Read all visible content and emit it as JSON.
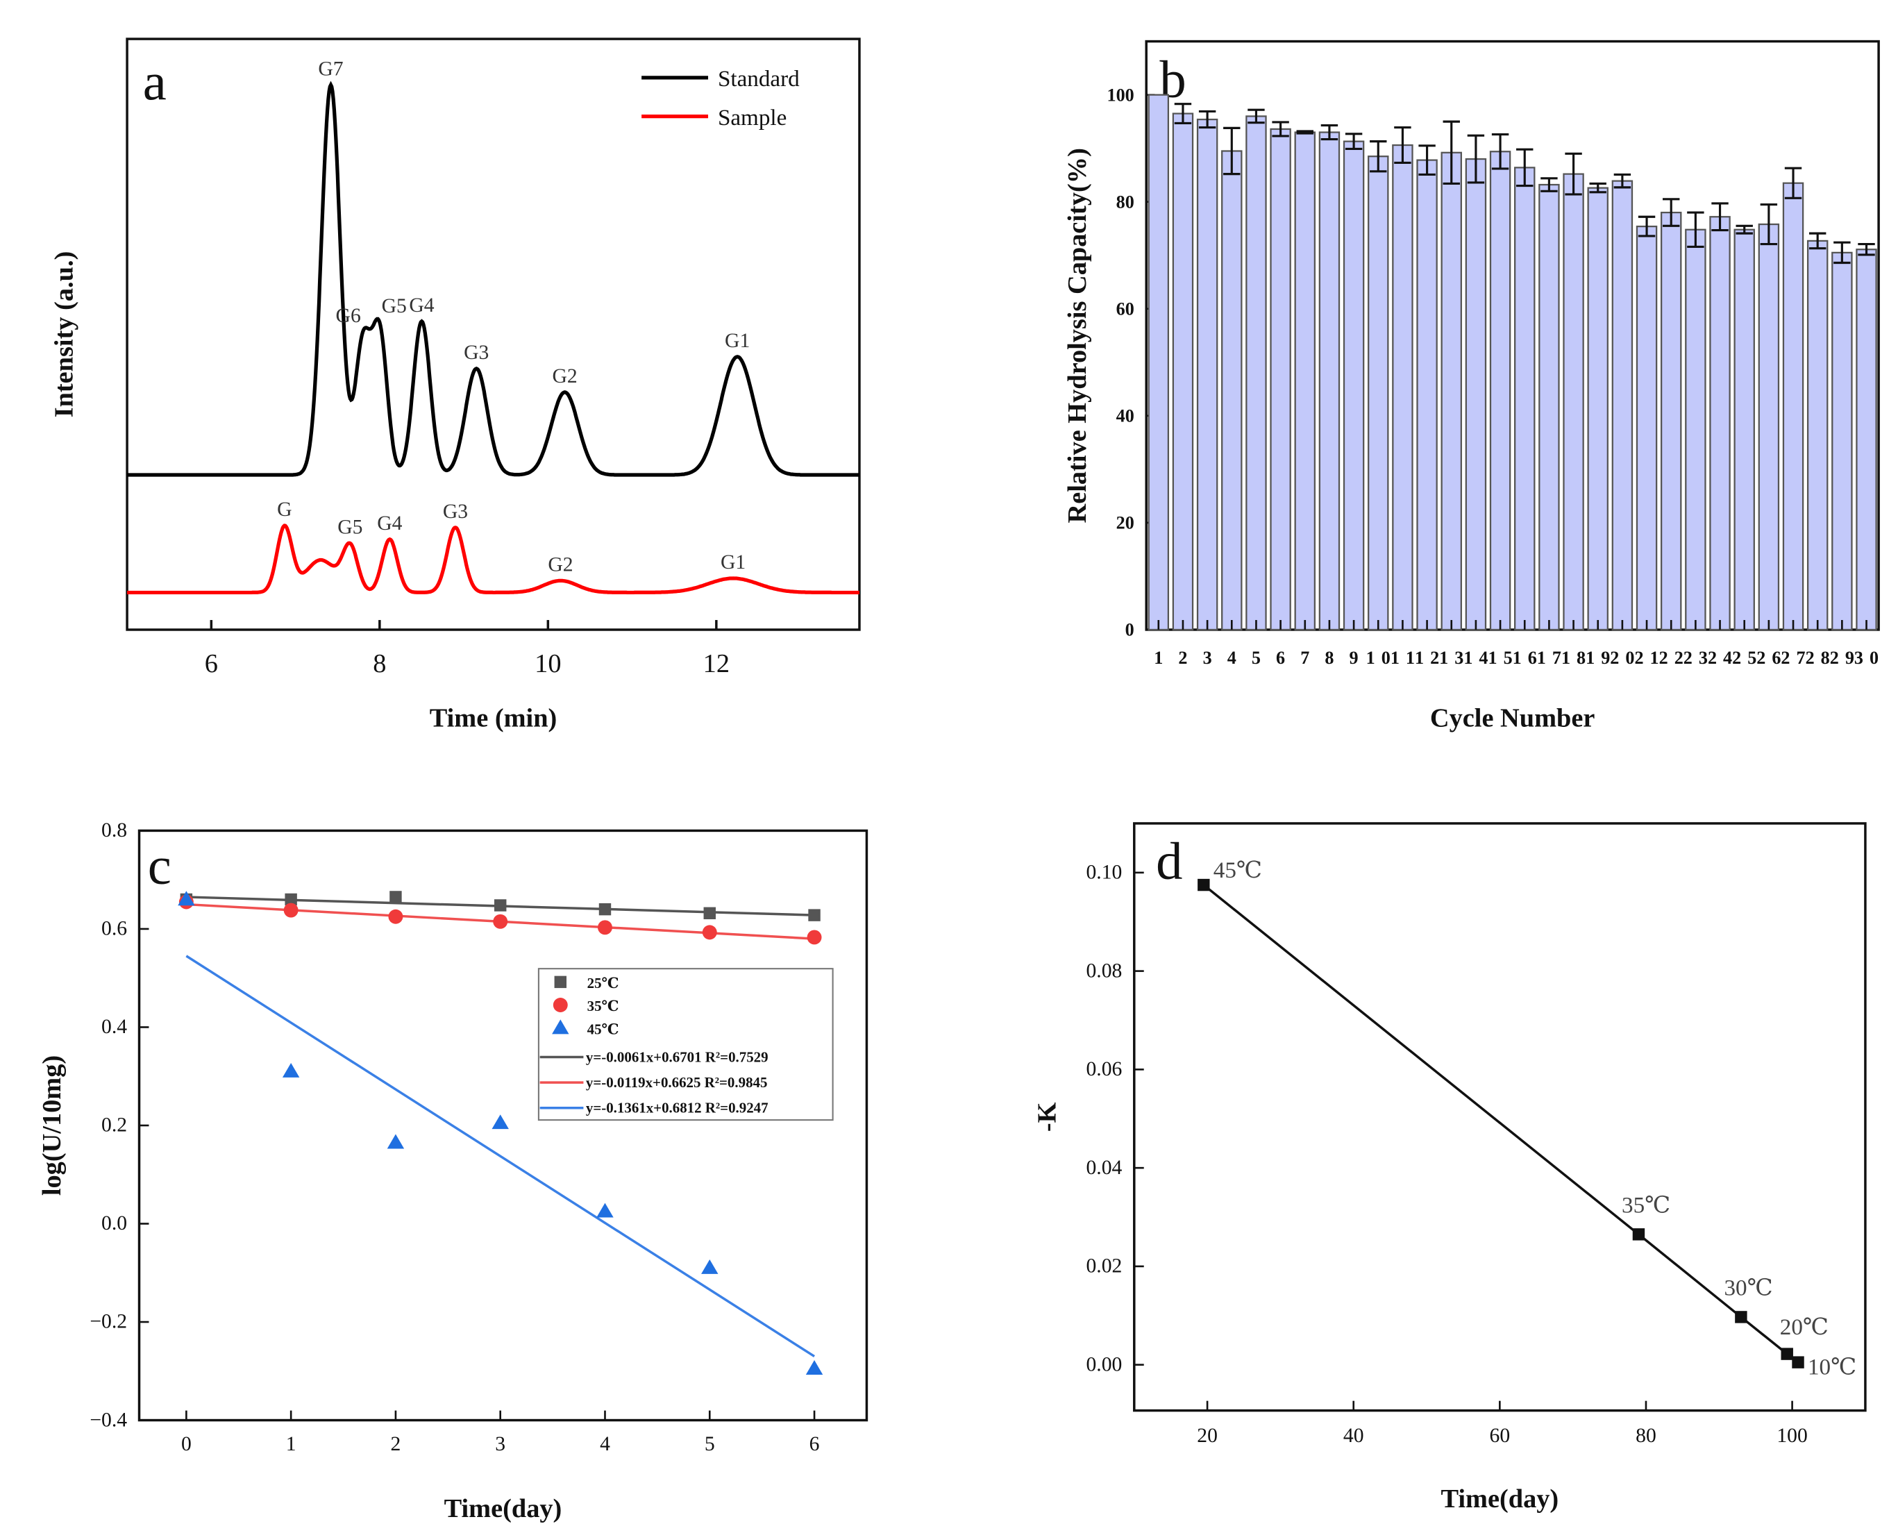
{
  "chart_data": [
    {
      "panel": "a",
      "type": "line",
      "title": "",
      "xlabel": "Time (min)",
      "ylabel": "Intensity (a.u.)",
      "xlim": [
        5,
        13.7
      ],
      "ylim": [
        0,
        100
      ],
      "xticks": [
        6,
        8,
        10,
        12
      ],
      "legend_position": "top-right",
      "series": [
        {
          "name": "Standard",
          "color": "#000000",
          "baseline": 26.2,
          "peaks": [
            {
              "label": "G7",
              "t": 7.42,
              "h": 66,
              "w": 0.11
            },
            {
              "label": "G6",
              "t": 7.8,
              "h": 22,
              "w": 0.09
            },
            {
              "label": "G5",
              "t": 8.0,
              "h": 24,
              "w": 0.09
            },
            {
              "label": "G4",
              "t": 8.5,
              "h": 26,
              "w": 0.1
            },
            {
              "label": "G3",
              "t": 9.15,
              "h": 18,
              "w": 0.13
            },
            {
              "label": "G2",
              "t": 10.2,
              "h": 14,
              "w": 0.16
            },
            {
              "label": "G1",
              "t": 12.25,
              "h": 20,
              "w": 0.2
            }
          ]
        },
        {
          "name": "Sample",
          "color": "#ff0000",
          "baseline": 6.3,
          "peaks": [
            {
              "label": "G",
              "t": 6.87,
              "h": 11,
              "w": 0.09
            },
            {
              "label": "",
              "t": 7.3,
              "h": 5.5,
              "w": 0.18
            },
            {
              "label": "G5",
              "t": 7.65,
              "h": 7.5,
              "w": 0.09
            },
            {
              "label": "G4",
              "t": 8.12,
              "h": 9,
              "w": 0.09
            },
            {
              "label": "G3",
              "t": 8.9,
              "h": 11,
              "w": 0.1
            },
            {
              "label": "G2",
              "t": 10.15,
              "h": 2,
              "w": 0.2
            },
            {
              "label": "G1",
              "t": 12.2,
              "h": 2.4,
              "w": 0.3
            }
          ]
        }
      ]
    },
    {
      "panel": "b",
      "type": "bar",
      "title": "",
      "xlabel": "Cycle Number",
      "ylabel": "Relative Hydrolysis Capacity(%)",
      "ylim": [
        0,
        110
      ],
      "yticks": [
        0,
        20,
        40,
        60,
        80,
        100
      ],
      "bar_color": "#c3c9fa",
      "categories": [
        "1",
        "2",
        "3",
        "4",
        "5",
        "6",
        "7",
        "8",
        "9",
        "10",
        "11",
        "12",
        "13",
        "14",
        "15",
        "16",
        "17",
        "18",
        "19",
        "20",
        "21",
        "22",
        "23",
        "24",
        "25",
        "26",
        "27",
        "28",
        "29",
        "30"
      ],
      "values": [
        100,
        96.5,
        95.4,
        89.5,
        96,
        93.6,
        93,
        93,
        91.3,
        88.5,
        90.6,
        87.8,
        89.2,
        88,
        89.4,
        86.4,
        83.2,
        85.2,
        82.6,
        83.9,
        75.4,
        78,
        74.8,
        77.2,
        74.8,
        75.8,
        83.5,
        72.7,
        70.5,
        71.1
      ],
      "errors": [
        0,
        1.8,
        1.5,
        4.3,
        1.2,
        1.3,
        0.2,
        1.3,
        1.4,
        2.8,
        3.3,
        2.7,
        5.8,
        4.4,
        3.2,
        3.4,
        1.2,
        3.8,
        0.8,
        1.2,
        1.8,
        2.5,
        3.2,
        2.5,
        0.7,
        3.7,
        2.8,
        1.4,
        1.9,
        1.0
      ]
    },
    {
      "panel": "c",
      "type": "scatter",
      "title": "",
      "xlabel": "Time(day)",
      "ylabel": "log(U/10mg)",
      "xlim": [
        -0.45,
        6.5
      ],
      "ylim": [
        -0.4,
        0.8
      ],
      "xticks": [
        0,
        1,
        2,
        3,
        4,
        5,
        6
      ],
      "yticks": [
        0.8,
        0.6,
        0.4,
        0.2,
        0.0,
        -0.2,
        -0.4
      ],
      "ytick_labels": [
        "0.8",
        "0.6",
        "0.4",
        "0.2",
        "0.0",
        "−0.2",
        "−0.4"
      ],
      "legend_position": "center-right",
      "x": [
        0,
        1,
        2,
        3,
        4,
        5,
        6
      ],
      "series": [
        {
          "name": "25℃",
          "marker": "square",
          "color": "#555555",
          "values": [
            0.66,
            0.66,
            0.665,
            0.648,
            0.64,
            0.632,
            0.628
          ]
        },
        {
          "name": "35℃",
          "marker": "circle",
          "color": "#f03a3a",
          "values": [
            0.655,
            0.638,
            0.625,
            0.615,
            0.603,
            0.593,
            0.583
          ]
        },
        {
          "name": "45℃",
          "marker": "triangle",
          "color": "#1f6fe0",
          "values": [
            0.66,
            0.31,
            0.165,
            0.205,
            0.025,
            -0.09,
            -0.295
          ]
        }
      ],
      "fits": [
        {
          "label": "y=-0.0061x+0.6701  R²=0.7529",
          "color": "#555555",
          "x": [
            0,
            6
          ],
          "y": [
            0.665,
            0.628
          ]
        },
        {
          "label": "y=-0.0119x+0.6625  R²=0.9845",
          "color": "#f05050",
          "x": [
            0,
            6
          ],
          "y": [
            0.65,
            0.58
          ]
        },
        {
          "label": "y=-0.1361x+0.6812  R²=0.9247",
          "color": "#3a80e6",
          "x": [
            0,
            6
          ],
          "y": [
            0.545,
            -0.27
          ]
        }
      ]
    },
    {
      "panel": "d",
      "type": "line",
      "title": "",
      "xlabel": "Time(day)",
      "ylabel": "-K",
      "xlim": [
        10,
        110
      ],
      "ylim": [
        -0.0093,
        0.11
      ],
      "xticks": [
        20,
        40,
        60,
        80,
        100
      ],
      "yticks": [
        0.0,
        0.02,
        0.04,
        0.06,
        0.08,
        0.1
      ],
      "ytick_labels": [
        "0.00",
        "0.02",
        "0.04",
        "0.06",
        "0.08",
        "0.10"
      ],
      "x": [
        19.5,
        79,
        93,
        99.3,
        100.8
      ],
      "y": [
        0.0975,
        0.0265,
        0.0097,
        0.0022,
        0.0005
      ],
      "point_labels": [
        "45℃",
        "35℃",
        "30℃",
        "20℃",
        "10℃"
      ]
    }
  ]
}
